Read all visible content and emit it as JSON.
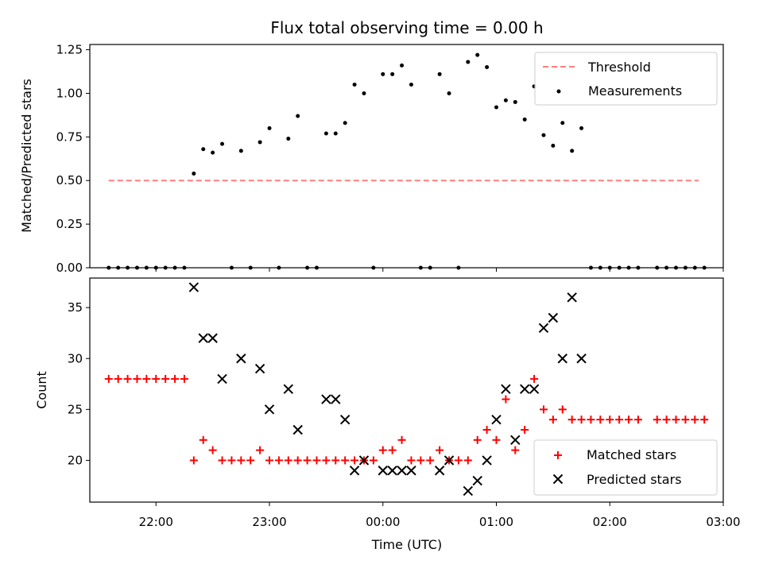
{
  "chart_data": [
    {
      "type": "scatter",
      "title": "Flux total observing time = 0.00 h",
      "ylabel": "Matched/Predicted stars",
      "ylim": [
        0,
        1.28
      ],
      "xlim": [
        "21:25",
        "03:00"
      ],
      "y_ticks": [
        "0.00",
        "0.25",
        "0.50",
        "0.75",
        "1.00",
        "1.25"
      ],
      "legend": {
        "placement": "upper right",
        "entries": [
          "Threshold",
          "Measurements"
        ]
      },
      "threshold": {
        "name": "Threshold",
        "value": 0.5,
        "x_start": "21:35",
        "x_end": "02:47",
        "color": "#ff7f7f",
        "style": "dashed"
      },
      "series": [
        {
          "name": "Measurements",
          "marker": "point",
          "color": "#000000",
          "points": [
            [
              "21:35",
              0
            ],
            [
              "21:40",
              0
            ],
            [
              "21:45",
              0
            ],
            [
              "21:50",
              0
            ],
            [
              "21:55",
              0
            ],
            [
              "22:00",
              0
            ],
            [
              "22:05",
              0
            ],
            [
              "22:10",
              0
            ],
            [
              "22:15",
              0
            ],
            [
              "22:20",
              0.54
            ],
            [
              "22:25",
              0.68
            ],
            [
              "22:30",
              0.66
            ],
            [
              "22:35",
              0.71
            ],
            [
              "22:40",
              0
            ],
            [
              "22:45",
              0.67
            ],
            [
              "22:50",
              0
            ],
            [
              "22:55",
              0.72
            ],
            [
              "23:00",
              0.8
            ],
            [
              "23:05",
              0
            ],
            [
              "23:10",
              0.74
            ],
            [
              "23:15",
              0.87
            ],
            [
              "23:20",
              0
            ],
            [
              "23:25",
              0
            ],
            [
              "23:30",
              0.77
            ],
            [
              "23:35",
              0.77
            ],
            [
              "23:40",
              0.83
            ],
            [
              "23:45",
              1.05
            ],
            [
              "23:50",
              1.0
            ],
            [
              "23:55",
              0
            ],
            [
              "00:00",
              1.11
            ],
            [
              "00:05",
              1.11
            ],
            [
              "00:10",
              1.16
            ],
            [
              "00:15",
              1.05
            ],
            [
              "00:20",
              0
            ],
            [
              "00:25",
              0
            ],
            [
              "00:30",
              1.11
            ],
            [
              "00:35",
              1.0
            ],
            [
              "00:40",
              0
            ],
            [
              "00:45",
              1.18
            ],
            [
              "00:50",
              1.22
            ],
            [
              "00:55",
              1.15
            ],
            [
              "01:00",
              0.92
            ],
            [
              "01:05",
              0.96
            ],
            [
              "01:10",
              0.95
            ],
            [
              "01:15",
              0.85
            ],
            [
              "01:20",
              1.04
            ],
            [
              "01:25",
              0.76
            ],
            [
              "01:30",
              0.7
            ],
            [
              "01:35",
              0.83
            ],
            [
              "01:40",
              0.67
            ],
            [
              "01:45",
              0.8
            ],
            [
              "01:50",
              0
            ],
            [
              "01:55",
              0
            ],
            [
              "02:00",
              0
            ],
            [
              "02:05",
              0
            ],
            [
              "02:10",
              0
            ],
            [
              "02:15",
              0
            ],
            [
              "02:25",
              0
            ],
            [
              "02:30",
              0
            ],
            [
              "02:35",
              0
            ],
            [
              "02:40",
              0
            ],
            [
              "02:45",
              0
            ],
            [
              "02:50",
              0
            ]
          ]
        }
      ]
    },
    {
      "type": "scatter",
      "ylabel": "Count",
      "xlabel": "Time (UTC)",
      "ylim": [
        15.9,
        37.9
      ],
      "xlim": [
        "21:25",
        "03:00"
      ],
      "y_ticks": [
        "20",
        "25",
        "30",
        "35"
      ],
      "x_ticks": [
        "22:00",
        "23:00",
        "00:00",
        "01:00",
        "02:00",
        "03:00"
      ],
      "legend": {
        "placement": "lower right",
        "entries": [
          "Matched stars",
          "Predicted stars"
        ]
      },
      "series": [
        {
          "name": "Matched stars",
          "marker": "plus",
          "color": "#ff0000",
          "points": [
            [
              "21:35",
              28
            ],
            [
              "21:40",
              28
            ],
            [
              "21:45",
              28
            ],
            [
              "21:50",
              28
            ],
            [
              "21:55",
              28
            ],
            [
              "22:00",
              28
            ],
            [
              "22:05",
              28
            ],
            [
              "22:10",
              28
            ],
            [
              "22:15",
              28
            ],
            [
              "22:20",
              20
            ],
            [
              "22:25",
              22
            ],
            [
              "22:30",
              21
            ],
            [
              "22:35",
              20
            ],
            [
              "22:40",
              20
            ],
            [
              "22:45",
              20
            ],
            [
              "22:50",
              20
            ],
            [
              "22:55",
              21
            ],
            [
              "23:00",
              20
            ],
            [
              "23:05",
              20
            ],
            [
              "23:10",
              20
            ],
            [
              "23:15",
              20
            ],
            [
              "23:20",
              20
            ],
            [
              "23:25",
              20
            ],
            [
              "23:30",
              20
            ],
            [
              "23:35",
              20
            ],
            [
              "23:40",
              20
            ],
            [
              "23:45",
              20
            ],
            [
              "23:50",
              20
            ],
            [
              "23:55",
              20
            ],
            [
              "00:00",
              21
            ],
            [
              "00:05",
              21
            ],
            [
              "00:10",
              22
            ],
            [
              "00:15",
              20
            ],
            [
              "00:20",
              20
            ],
            [
              "00:25",
              20
            ],
            [
              "00:30",
              21
            ],
            [
              "00:35",
              20
            ],
            [
              "00:40",
              20
            ],
            [
              "00:45",
              20
            ],
            [
              "00:50",
              22
            ],
            [
              "00:55",
              23
            ],
            [
              "01:00",
              22
            ],
            [
              "01:05",
              26
            ],
            [
              "01:10",
              21
            ],
            [
              "01:15",
              23
            ],
            [
              "01:20",
              28
            ],
            [
              "01:25",
              25
            ],
            [
              "01:30",
              24
            ],
            [
              "01:35",
              25
            ],
            [
              "01:40",
              24
            ],
            [
              "01:45",
              24
            ],
            [
              "01:50",
              24
            ],
            [
              "01:55",
              24
            ],
            [
              "02:00",
              24
            ],
            [
              "02:05",
              24
            ],
            [
              "02:10",
              24
            ],
            [
              "02:15",
              24
            ],
            [
              "02:25",
              24
            ],
            [
              "02:30",
              24
            ],
            [
              "02:35",
              24
            ],
            [
              "02:40",
              24
            ],
            [
              "02:45",
              24
            ],
            [
              "02:50",
              24
            ]
          ]
        },
        {
          "name": "Predicted stars",
          "marker": "x",
          "color": "#000000",
          "points": [
            [
              "22:20",
              37
            ],
            [
              "22:25",
              32
            ],
            [
              "22:30",
              32
            ],
            [
              "22:35",
              28
            ],
            [
              "22:45",
              30
            ],
            [
              "22:55",
              29
            ],
            [
              "23:00",
              25
            ],
            [
              "23:10",
              27
            ],
            [
              "23:15",
              23
            ],
            [
              "23:30",
              26
            ],
            [
              "23:35",
              26
            ],
            [
              "23:40",
              24
            ],
            [
              "23:45",
              19
            ],
            [
              "23:50",
              20
            ],
            [
              "00:00",
              19
            ],
            [
              "00:05",
              19
            ],
            [
              "00:10",
              19
            ],
            [
              "00:15",
              19
            ],
            [
              "00:30",
              19
            ],
            [
              "00:35",
              20
            ],
            [
              "00:45",
              17
            ],
            [
              "00:50",
              18
            ],
            [
              "00:55",
              20
            ],
            [
              "01:00",
              24
            ],
            [
              "01:05",
              27
            ],
            [
              "01:10",
              22
            ],
            [
              "01:15",
              27
            ],
            [
              "01:20",
              27
            ],
            [
              "01:25",
              33
            ],
            [
              "01:30",
              34
            ],
            [
              "01:35",
              30
            ],
            [
              "01:40",
              36
            ],
            [
              "01:45",
              30
            ]
          ]
        }
      ]
    }
  ]
}
